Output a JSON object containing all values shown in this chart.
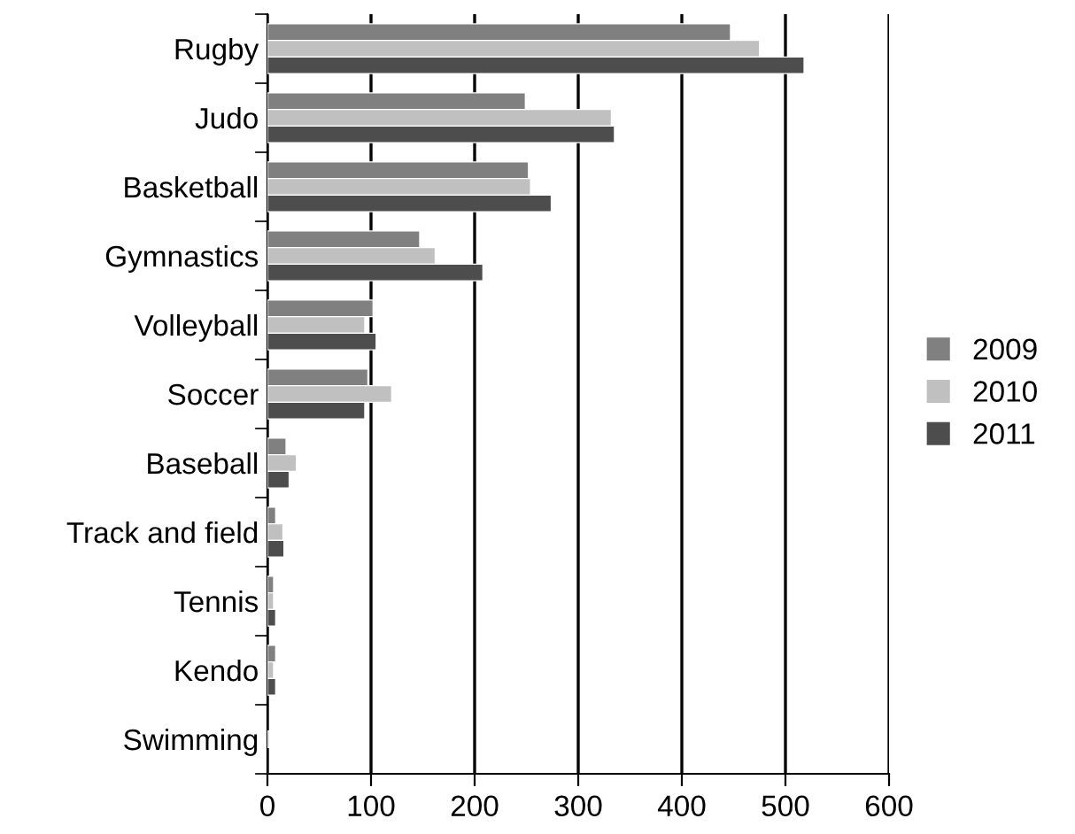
{
  "chart_data": {
    "type": "bar",
    "orientation": "horizontal",
    "categories": [
      "Rugby",
      "Judo",
      "Basketball",
      "Gymnastics",
      "Volleyball",
      "Soccer",
      "Baseball",
      "Track and field",
      "Tennis",
      "Kendo",
      "Swimming"
    ],
    "series": [
      {
        "name": "2009",
        "color": "#808080",
        "values": [
          447,
          249,
          252,
          147,
          102,
          97,
          18,
          8,
          6,
          8,
          0
        ]
      },
      {
        "name": "2010",
        "color": "#c0c0c0",
        "values": [
          475,
          332,
          254,
          162,
          94,
          120,
          28,
          15,
          6,
          6,
          2
        ]
      },
      {
        "name": "2011",
        "color": "#4d4d4d",
        "values": [
          518,
          335,
          274,
          208,
          105,
          94,
          21,
          16,
          8,
          8,
          0
        ]
      }
    ],
    "xlim": [
      0,
      600
    ],
    "xticks": [
      0,
      100,
      200,
      300,
      400,
      500,
      600
    ],
    "grid": "x",
    "legend": "right"
  }
}
